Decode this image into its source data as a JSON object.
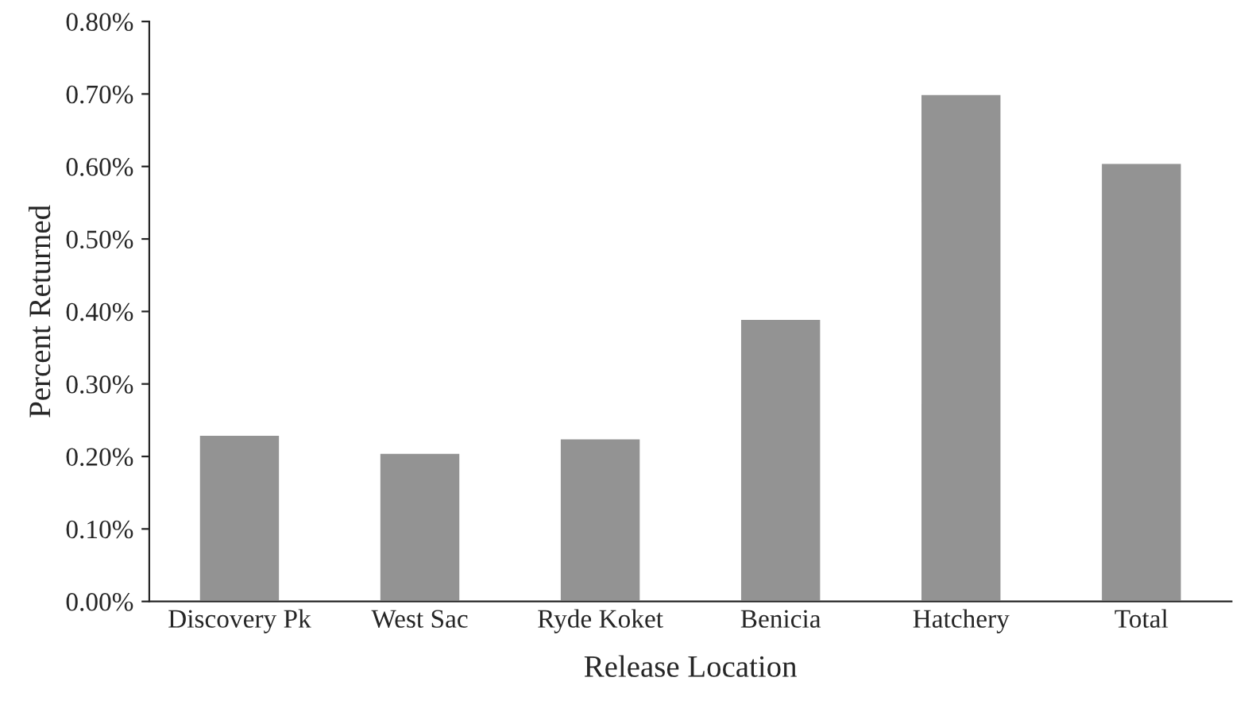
{
  "chart_data": {
    "type": "bar",
    "xlabel": "Release Location",
    "ylabel": "Percent Returned",
    "categories": [
      "Discovery Pk",
      "West Sac",
      "Ryde Koket",
      "Benicia",
      "Hatchery",
      "Total"
    ],
    "values": [
      0.23,
      0.205,
      0.225,
      0.39,
      0.7,
      0.605
    ],
    "color": "#939393",
    "ylim": [
      0,
      0.8
    ],
    "yticks": [
      {
        "value": 0,
        "label": "0.00%"
      },
      {
        "value": 0.1,
        "label": "0.10%"
      },
      {
        "value": 0.2,
        "label": "0.20%"
      },
      {
        "value": 0.3,
        "label": "0.30%"
      },
      {
        "value": 0.4,
        "label": "0.40%"
      },
      {
        "value": 0.5,
        "label": "0.50%"
      },
      {
        "value": 0.6,
        "label": "0.60%"
      },
      {
        "value": 0.7,
        "label": "0.70%"
      },
      {
        "value": 0.8,
        "label": "0.80%"
      }
    ],
    "grid": false,
    "legend": false
  }
}
